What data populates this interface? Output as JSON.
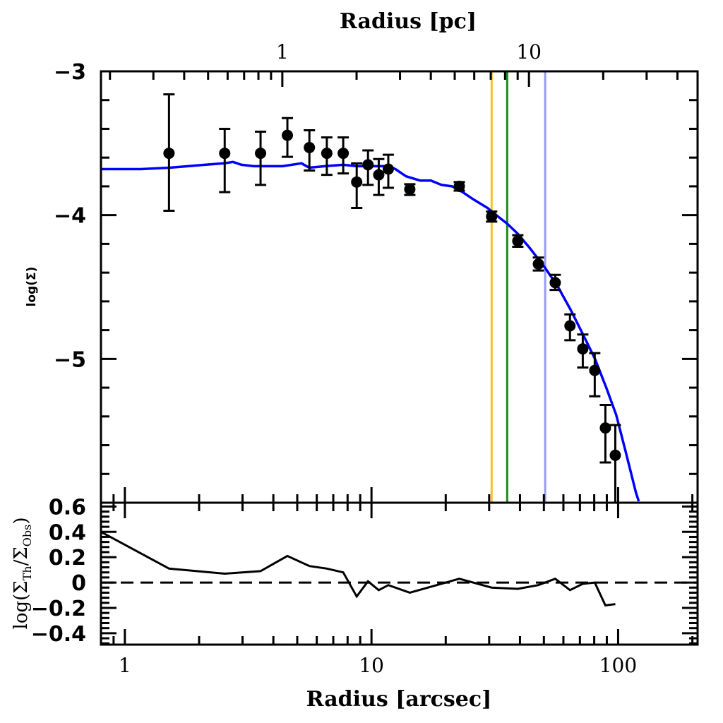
{
  "chart_data": {
    "type": "scatter",
    "panels": [
      {
        "name": "profile",
        "xlabel": "Radius [arcsec]",
        "ylabel": "log(Σ)",
        "xscale": "log",
        "xlim": [
          0.8,
          210
        ],
        "ylim": [
          -6.0,
          -3.0
        ],
        "yticks": [
          -3,
          -4,
          -5
        ],
        "ytick_labels": [
          "−3",
          "−4",
          "−5"
        ],
        "y_minor_step": 0.2,
        "top_axis": {
          "label": "Radius [pc]",
          "arcsec_per_pc": 4.35,
          "ticks": [
            1,
            10
          ],
          "tick_labels": [
            "1",
            "10"
          ]
        },
        "series": [
          {
            "name": "Observed",
            "kind": "errorbar",
            "color": "#000000",
            "points": [
              {
                "x": 1.51,
                "y": -3.57,
                "err_up": 0.41,
                "err_down": 0.4
              },
              {
                "x": 2.54,
                "y": -3.57,
                "err_up": 0.17,
                "err_down": 0.27
              },
              {
                "x": 3.55,
                "y": -3.57,
                "err_up": 0.15,
                "err_down": 0.22
              },
              {
                "x": 4.56,
                "y": -3.445,
                "err_up": 0.12,
                "err_down": 0.15
              },
              {
                "x": 5.6,
                "y": -3.53,
                "err_up": 0.12,
                "err_down": 0.16
              },
              {
                "x": 6.59,
                "y": -3.57,
                "err_up": 0.11,
                "err_down": 0.15
              },
              {
                "x": 7.68,
                "y": -3.57,
                "err_up": 0.11,
                "err_down": 0.14
              },
              {
                "x": 8.71,
                "y": -3.77,
                "err_up": 0.13,
                "err_down": 0.18
              },
              {
                "x": 9.68,
                "y": -3.65,
                "err_up": 0.1,
                "err_down": 0.14
              },
              {
                "x": 10.7,
                "y": -3.72,
                "err_up": 0.11,
                "err_down": 0.14
              },
              {
                "x": 11.7,
                "y": -3.68,
                "err_up": 0.1,
                "err_down": 0.13
              },
              {
                "x": 14.3,
                "y": -3.82,
                "err_up": 0.035,
                "err_down": 0.04
              },
              {
                "x": 22.7,
                "y": -3.8,
                "err_up": 0.03,
                "err_down": 0.03
              },
              {
                "x": 30.7,
                "y": -4.01,
                "err_up": 0.035,
                "err_down": 0.035
              },
              {
                "x": 39.2,
                "y": -4.18,
                "err_up": 0.04,
                "err_down": 0.04
              },
              {
                "x": 47.5,
                "y": -4.34,
                "err_up": 0.045,
                "err_down": 0.045
              },
              {
                "x": 55.6,
                "y": -4.47,
                "err_up": 0.055,
                "err_down": 0.05
              },
              {
                "x": 63.8,
                "y": -4.77,
                "err_up": 0.08,
                "err_down": 0.1
              },
              {
                "x": 71.9,
                "y": -4.93,
                "err_up": 0.1,
                "err_down": 0.13
              },
              {
                "x": 80.4,
                "y": -5.08,
                "err_up": 0.12,
                "err_down": 0.18
              },
              {
                "x": 88.8,
                "y": -5.48,
                "err_up": 0.16,
                "err_down": 0.24
              },
              {
                "x": 97.4,
                "y": -5.67,
                "err_up": 0.21,
                "err_down": 0.4
              }
            ]
          },
          {
            "name": "Model",
            "kind": "line",
            "color": "#0000ff",
            "x": [
              0.8,
              1.16,
              1.52,
              2.11,
              2.53,
              2.74,
              2.97,
              3.34,
              4.35,
              5.2,
              5.59,
              6.47,
              7.68,
              8.72,
              10.26,
              11.85,
              12.5,
              13.81,
              15.77,
              17.41,
              19.22,
              21.22,
              23.42,
              25.86,
              29.53,
              32.6,
              35.52,
              39.21,
              43.89,
              50.73,
              57.1,
              64.29,
              72.04,
              80.59,
              89.52,
              98.25,
              107.1,
              118.1,
              121.3
            ],
            "y": [
              -3.68,
              -3.68,
              -3.67,
              -3.65,
              -3.64,
              -3.63,
              -3.65,
              -3.66,
              -3.66,
              -3.64,
              -3.67,
              -3.66,
              -3.65,
              -3.66,
              -3.66,
              -3.66,
              -3.68,
              -3.73,
              -3.76,
              -3.76,
              -3.79,
              -3.8,
              -3.84,
              -3.89,
              -3.95,
              -4.01,
              -4.06,
              -4.13,
              -4.23,
              -4.37,
              -4.5,
              -4.66,
              -4.83,
              -5.0,
              -5.2,
              -5.39,
              -5.64,
              -5.93,
              -5.99
            ]
          }
        ],
        "vertical_lines": [
          {
            "name": "orange-radius",
            "x": 30.7,
            "color": "#ffc020"
          },
          {
            "name": "green-radius",
            "x": 35.5,
            "color": "#1a8c1a"
          },
          {
            "name": "lightblue-radius",
            "x": 50.6,
            "color": "#9999ff"
          }
        ]
      },
      {
        "name": "residuals",
        "xlabel": "Radius [arcsec]",
        "ylabel": "log(ΣTh/ΣObs)",
        "ylabel_parts": {
          "prefix": "log(Σ",
          "sub1": "Th",
          "mid": "/Σ",
          "sub2": "Obs",
          "suffix": ")"
        },
        "xscale": "log",
        "xlim": [
          0.8,
          210
        ],
        "ylim": [
          -0.49,
          0.63
        ],
        "xticks": [
          1,
          10,
          100
        ],
        "xtick_labels": [
          "1",
          "10",
          "100"
        ],
        "yticks": [
          0.6,
          0.4,
          0.2,
          0,
          -0.2,
          -0.4
        ],
        "ytick_labels": [
          "0.6",
          "0.4",
          "0.2",
          "0",
          "−0.2",
          "−0.4"
        ],
        "y_minor_step": 0.04,
        "zero_line": 0,
        "series": [
          {
            "name": "Residual",
            "kind": "line",
            "color": "#000000",
            "x": [
              0.8,
              1.51,
              2.54,
              3.55,
              4.56,
              5.6,
              6.59,
              7.68,
              8.71,
              9.68,
              10.7,
              11.7,
              14.3,
              22.7,
              30.7,
              39.2,
              47.5,
              55.6,
              63.8,
              71.9,
              80.4,
              88.8,
              97.4
            ],
            "y": [
              0.4,
              0.11,
              0.07,
              0.09,
              0.21,
              0.13,
              0.11,
              0.08,
              -0.11,
              0.01,
              -0.06,
              -0.02,
              -0.08,
              0.03,
              -0.04,
              -0.05,
              -0.02,
              0.03,
              -0.06,
              -0.01,
              0.0,
              -0.18,
              -0.17
            ]
          }
        ]
      }
    ]
  }
}
